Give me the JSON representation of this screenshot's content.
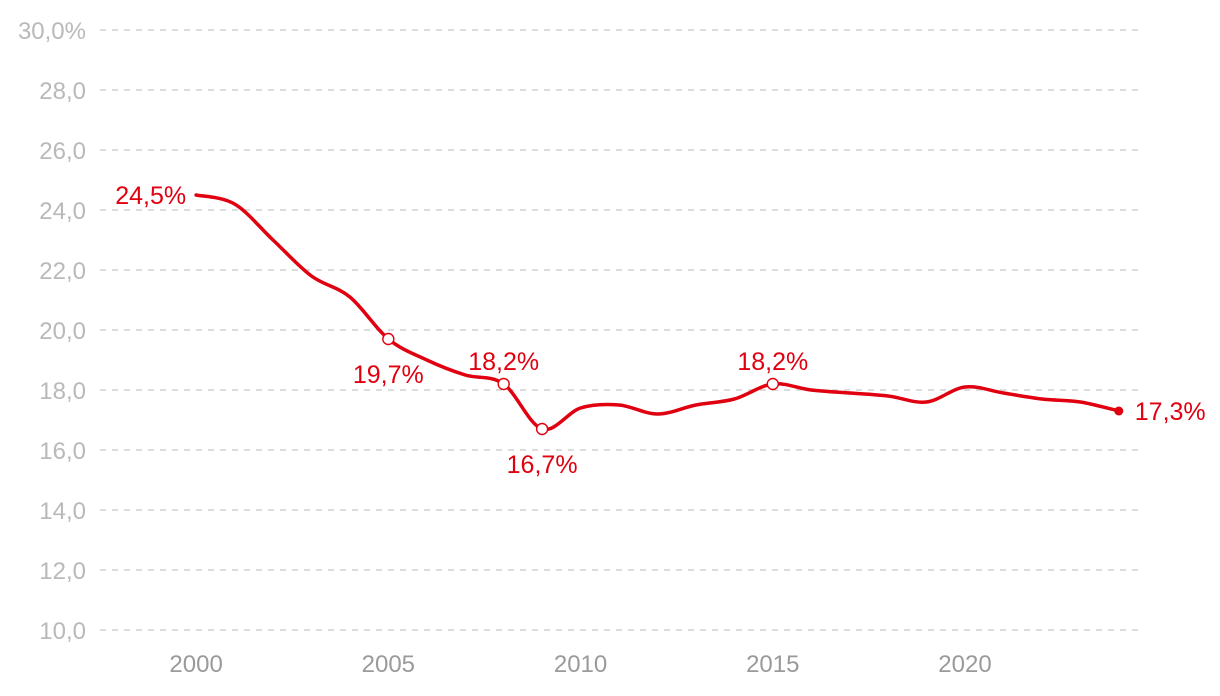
{
  "chart_data": {
    "type": "line",
    "title": "",
    "xlabel": "",
    "ylabel": "",
    "color": "#e0000f",
    "ylim": [
      10,
      30
    ],
    "xlim": [
      1997.5,
      2024.5
    ],
    "y_ticks": [
      "10,0",
      "12,0",
      "14,0",
      "16,0",
      "18,0",
      "20,0",
      "22,0",
      "24,0",
      "26,0",
      "28,0",
      "30,0%"
    ],
    "x_ticks": [
      "2000",
      "2005",
      "2010",
      "2015",
      "2020"
    ],
    "grid": true,
    "legend": "none",
    "series": [
      {
        "x": [
          2000,
          2001,
          2002,
          2003,
          2004,
          2005,
          2006,
          2007,
          2008,
          2009,
          2010,
          2011,
          2012,
          2013,
          2014,
          2015,
          2016,
          2017,
          2018,
          2019,
          2020,
          2021,
          2022,
          2023,
          2024
        ],
        "y": [
          24.5,
          24.2,
          23.0,
          21.8,
          21.1,
          19.7,
          19.0,
          18.5,
          18.2,
          16.7,
          17.4,
          17.5,
          17.2,
          17.5,
          17.7,
          18.2,
          18.0,
          17.9,
          17.8,
          17.6,
          18.1,
          17.9,
          17.7,
          17.6,
          17.3
        ]
      }
    ],
    "annotations": [
      {
        "x": 2000,
        "y": 24.5,
        "text": "24,5%",
        "marker": "none",
        "position": "left"
      },
      {
        "x": 2005,
        "y": 19.7,
        "text": "19,7%",
        "marker": "open-circle",
        "position": "below"
      },
      {
        "x": 2008,
        "y": 18.2,
        "text": "18,2%",
        "marker": "open-circle",
        "position": "above"
      },
      {
        "x": 2009,
        "y": 16.7,
        "text": "16,7%",
        "marker": "open-circle",
        "position": "below"
      },
      {
        "x": 2015,
        "y": 18.2,
        "text": "18,2%",
        "marker": "open-circle",
        "position": "above"
      },
      {
        "x": 2024,
        "y": 17.3,
        "text": "17,3%",
        "marker": "filled-circle",
        "position": "right"
      }
    ]
  }
}
